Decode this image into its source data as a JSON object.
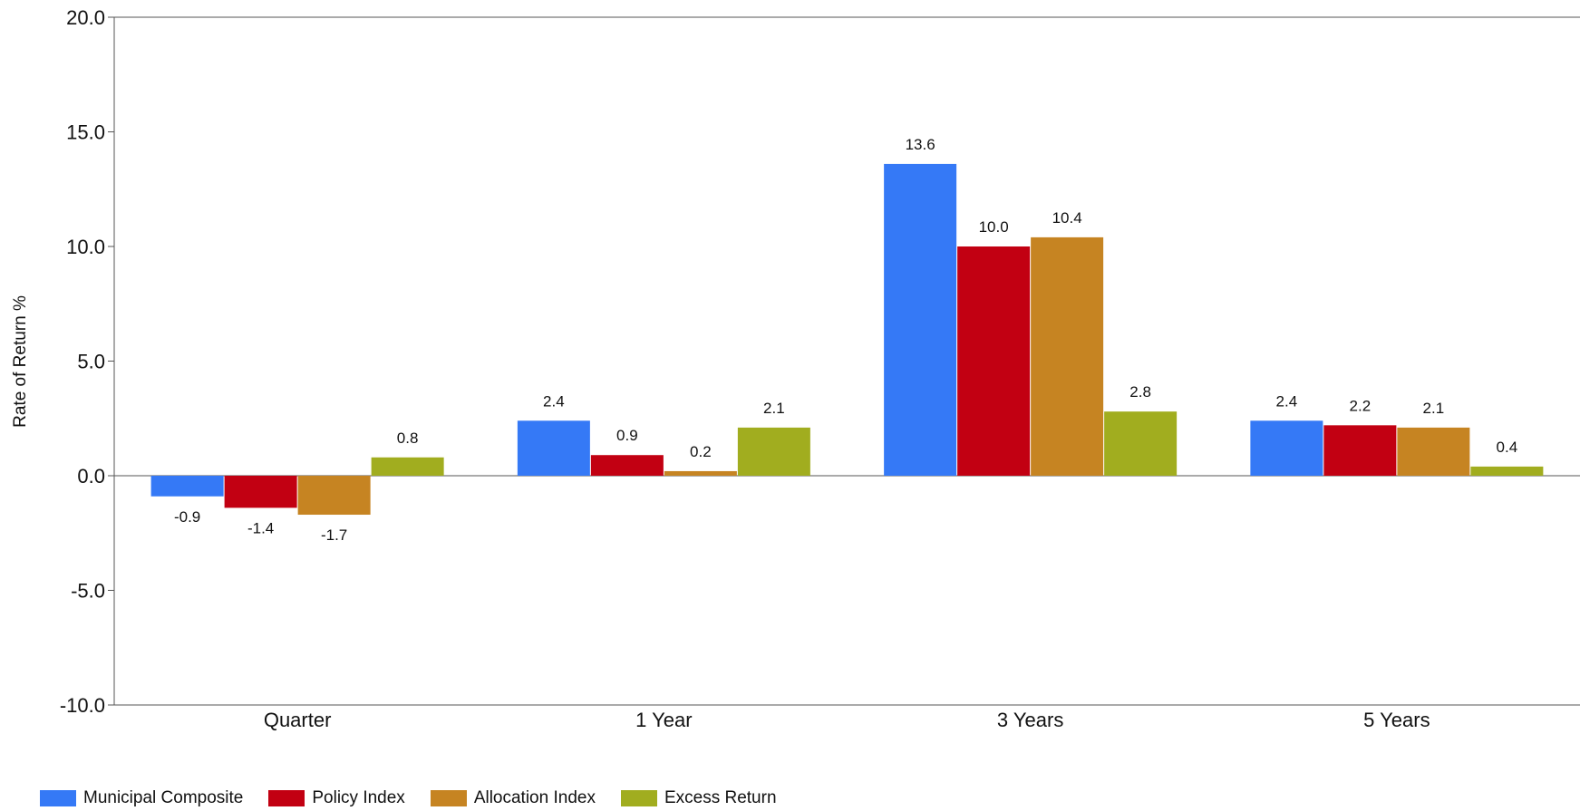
{
  "chart_data": {
    "type": "bar",
    "title": "",
    "xlabel": "",
    "ylabel": "Rate of Return %",
    "ylim": [
      -10,
      20
    ],
    "yticks": [
      "20.0",
      "15.0",
      "10.0",
      "5.0",
      "0.0",
      "-5.0",
      "-10.0"
    ],
    "ytick_values": [
      20,
      15,
      10,
      5,
      0,
      -5,
      -10
    ],
    "categories": [
      "Quarter",
      "1 Year",
      "3 Years",
      "5 Years"
    ],
    "series": [
      {
        "name": "Municipal Composite",
        "color": "#3579F6",
        "values": [
          -0.9,
          2.4,
          13.6,
          2.4
        ],
        "labels": [
          "-0.9",
          "2.4",
          "13.6",
          "2.4"
        ]
      },
      {
        "name": "Policy Index",
        "color": "#C20012",
        "values": [
          -1.4,
          0.9,
          10.0,
          2.2
        ],
        "labels": [
          "-1.4",
          "0.9",
          "10.0",
          "2.2"
        ]
      },
      {
        "name": "Allocation Index",
        "color": "#C68422",
        "values": [
          -1.7,
          0.2,
          10.4,
          2.1
        ],
        "labels": [
          "-1.7",
          "0.2",
          "10.4",
          "2.1"
        ]
      },
      {
        "name": "Excess Return",
        "color": "#A1AD1F",
        "values": [
          0.8,
          2.1,
          2.8,
          0.4
        ],
        "labels": [
          "0.8",
          "2.1",
          "2.8",
          "0.4"
        ]
      }
    ],
    "grid": false,
    "legend_position": "bottom-left"
  }
}
